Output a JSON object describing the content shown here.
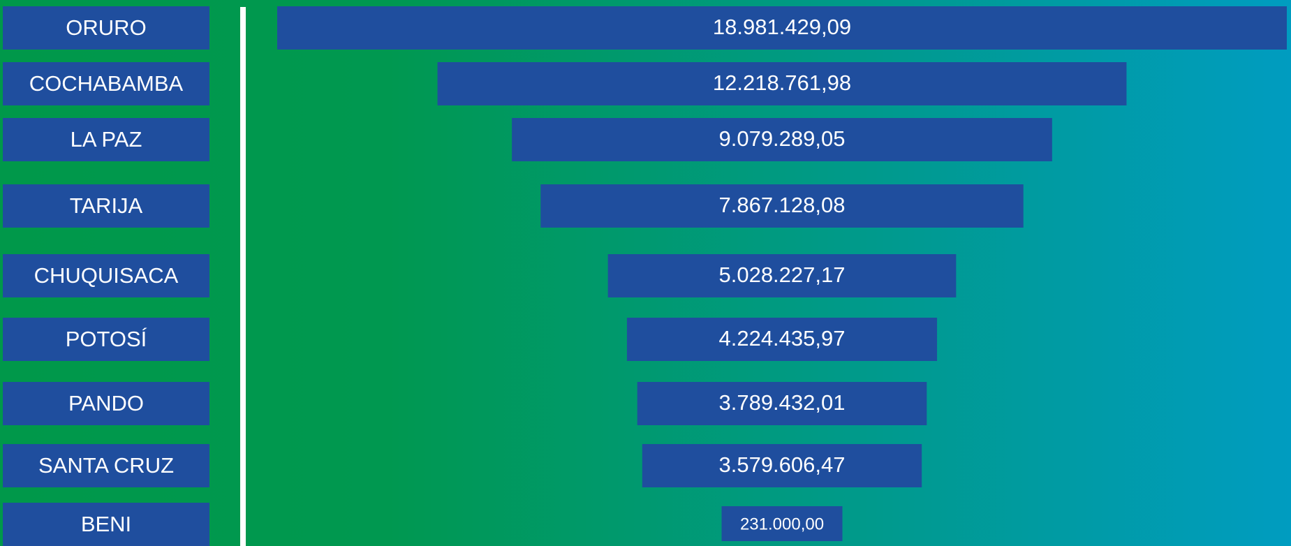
{
  "chart_data": {
    "type": "funnel",
    "categories": [
      "ORURO",
      "COCHABAMBA",
      "LA PAZ",
      "TARIJA",
      "CHUQUISACA",
      "POTOSÍ",
      "PANDO",
      "SANTA CRUZ",
      "BENI"
    ],
    "values": [
      18981429.09,
      12218761.98,
      9079289.05,
      7867128.08,
      5028227.17,
      4224435.97,
      3789432.01,
      3579606.47,
      231000.0
    ],
    "value_labels": [
      "18.981.429,09",
      "12.218.761,98",
      "9.079.289,05",
      "7.867.128,08",
      "5.028.227,17",
      "4.224.435,97",
      "3.789.432,01",
      "3.579.606,47",
      "231.000,00"
    ],
    "color": "#1f4e9e"
  }
}
